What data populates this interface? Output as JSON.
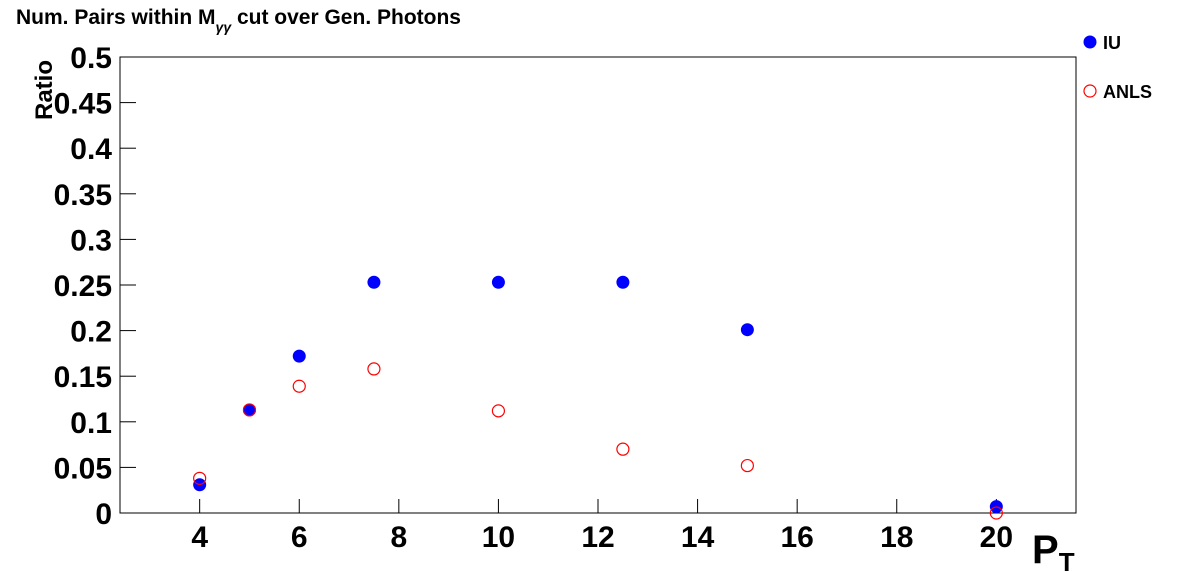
{
  "chart_data": {
    "type": "scatter",
    "title": [
      "Num. Pairs within M",
      "γγ",
      " cut over Gen. Photons"
    ],
    "xlabel": [
      "P",
      "T"
    ],
    "ylabel": "Ratio",
    "xlim": [
      2.4,
      21.6
    ],
    "ylim": [
      0,
      0.5
    ],
    "xticks": [
      4,
      6,
      8,
      10,
      12,
      14,
      16,
      18,
      20
    ],
    "yticks": [
      0,
      0.05,
      0.1,
      0.15,
      0.2,
      0.25,
      0.3,
      0.35,
      0.4,
      0.45,
      0.5
    ],
    "legend": "upper right",
    "series": [
      {
        "name": "IU",
        "color": "#0000ff",
        "marker": "filled-circle",
        "x": [
          4,
          5,
          6,
          7.5,
          10,
          12.5,
          15,
          20
        ],
        "values": [
          0.031,
          0.113,
          0.172,
          0.253,
          0.253,
          0.253,
          0.201,
          0.007
        ]
      },
      {
        "name": "ANLS",
        "color": "#ff0000",
        "marker": "open-circle",
        "x": [
          4,
          5,
          6,
          7.5,
          10,
          12.5,
          15,
          20
        ],
        "values": [
          0.038,
          0.113,
          0.139,
          0.158,
          0.112,
          0.07,
          0.052,
          0.0
        ]
      }
    ]
  }
}
